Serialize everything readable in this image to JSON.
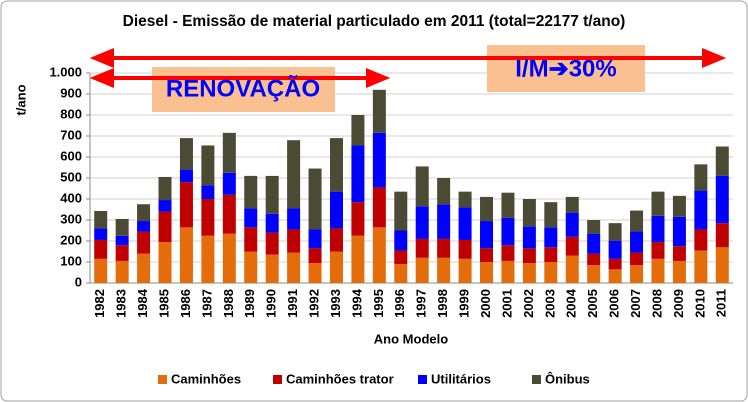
{
  "chart_data": {
    "type": "stacked_bar",
    "title": "Diesel - Emissão de material particulado em 2011 (total=22177 t/ano)",
    "y_label": "t/ano",
    "x_label": "Ano Modelo",
    "annotations": [
      "RENOVAÇÃO",
      "I/M➔30%"
    ],
    "categories": [
      "1982",
      "1983",
      "1984",
      "1985",
      "1986",
      "1987",
      "1988",
      "1989",
      "1990",
      "1991",
      "1992",
      "1993",
      "1994",
      "1995",
      "1996",
      "1997",
      "1998",
      "1999",
      "2000",
      "2001",
      "2002",
      "2003",
      "2004",
      "2005",
      "2006",
      "2007",
      "2008",
      "2009",
      "2010",
      "2011"
    ],
    "series": [
      {
        "name": "Caminhões",
        "color": "#e46c0a",
        "values": [
          115,
          105,
          140,
          195,
          265,
          225,
          235,
          150,
          135,
          145,
          95,
          150,
          225,
          265,
          90,
          120,
          120,
          115,
          100,
          105,
          95,
          100,
          130,
          85,
          65,
          85,
          115,
          105,
          155,
          170
        ]
      },
      {
        "name": "Caminhões trator",
        "color": "#c00000",
        "values": [
          90,
          75,
          105,
          145,
          215,
          175,
          185,
          115,
          105,
          110,
          70,
          110,
          160,
          190,
          65,
          90,
          90,
          90,
          65,
          75,
          70,
          70,
          90,
          55,
          50,
          60,
          80,
          70,
          100,
          115
        ]
      },
      {
        "name": "Utilitários",
        "color": "#0000ff",
        "values": [
          55,
          45,
          50,
          55,
          60,
          65,
          105,
          90,
          90,
          100,
          90,
          175,
          270,
          260,
          95,
          155,
          165,
          155,
          130,
          130,
          105,
          95,
          115,
          95,
          85,
          100,
          125,
          140,
          185,
          225
        ]
      },
      {
        "name": "Ônibus",
        "color": "#4a4a35",
        "values": [
          83,
          80,
          80,
          110,
          150,
          190,
          190,
          155,
          180,
          325,
          290,
          255,
          145,
          205,
          185,
          190,
          125,
          75,
          115,
          120,
          130,
          120,
          75,
          65,
          85,
          100,
          115,
          100,
          125,
          140
        ]
      }
    ],
    "ylim": [
      0,
      1000
    ],
    "yticks": [
      0,
      100,
      200,
      300,
      400,
      500,
      600,
      700,
      800,
      900,
      {
        "value": 1000,
        "label": "1.000"
      }
    ],
    "grid": true,
    "legend": "bottom"
  }
}
